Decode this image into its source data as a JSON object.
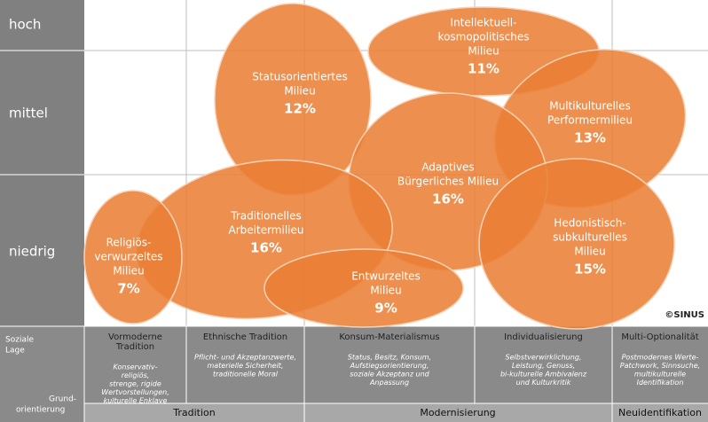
{
  "rows": [
    "hoch",
    "mittel",
    "niedrig"
  ],
  "nodes": [
    {
      "label": [
        "Statusorientiertes",
        "Milieu"
      ],
      "share": "12%"
    },
    {
      "label": [
        "Intellektuell-",
        "kosmopolitisches",
        "Milieu"
      ],
      "share": "11%"
    },
    {
      "label": [
        "Multikulturelles",
        "Performermilieu"
      ],
      "share": "13%"
    },
    {
      "label": [
        "Adaptives",
        "Bürgerliches Milieu"
      ],
      "share": "16%"
    },
    {
      "label": [
        "Traditionelles",
        "Arbeitermilieu"
      ],
      "share": "16%"
    },
    {
      "label": [
        "Hedonistisch-",
        "subkulturelles",
        "Milieu"
      ],
      "share": "15%"
    },
    {
      "label": [
        "Religiös-",
        "verwurzeltes",
        "Milieu"
      ],
      "share": "7%"
    },
    {
      "label": [
        "Entwurzeltes",
        "Milieu"
      ],
      "share": "9%"
    }
  ],
  "copyright": "©SINUS",
  "y_axis_label": [
    "Soziale",
    "Lage"
  ],
  "x_axis_label": [
    "Grund-",
    "orientierung"
  ],
  "columns": [
    {
      "title": [
        "Vormoderne",
        "Tradition"
      ],
      "description": [
        "Konservativ-",
        "religiös,",
        "strenge, rigide",
        "Wertvorstellungen,",
        "kulturelle Enklave"
      ]
    },
    {
      "title": [
        "Ethnische Tradition"
      ],
      "description": [
        "Pflicht- und Akzeptanzwerte,",
        "materielle Sicherheit,",
        "traditionelle Moral"
      ]
    },
    {
      "title": [
        "Konsum-Materialismus"
      ],
      "description": [
        "Status, Besitz, Konsum,",
        "Aufstiegsorientierung,",
        "soziale Akzeptanz und",
        "Anpassung"
      ]
    },
    {
      "title": [
        "Individualisierung"
      ],
      "description": [
        "Selbstverwirklichung,",
        "Leistung, Genuss,",
        "bi-kulturelle Ambivalenz",
        "und Kulturkritik"
      ]
    },
    {
      "title": [
        "Multi-Optionalität"
      ],
      "description": [
        "Postmodernes Werte-",
        "Patchwork, Sinnsuche,",
        "multikulturelle",
        "Identifikation"
      ]
    }
  ],
  "groups": [
    "Tradition",
    "Modernisierung",
    "Neuidentifikation"
  ]
}
